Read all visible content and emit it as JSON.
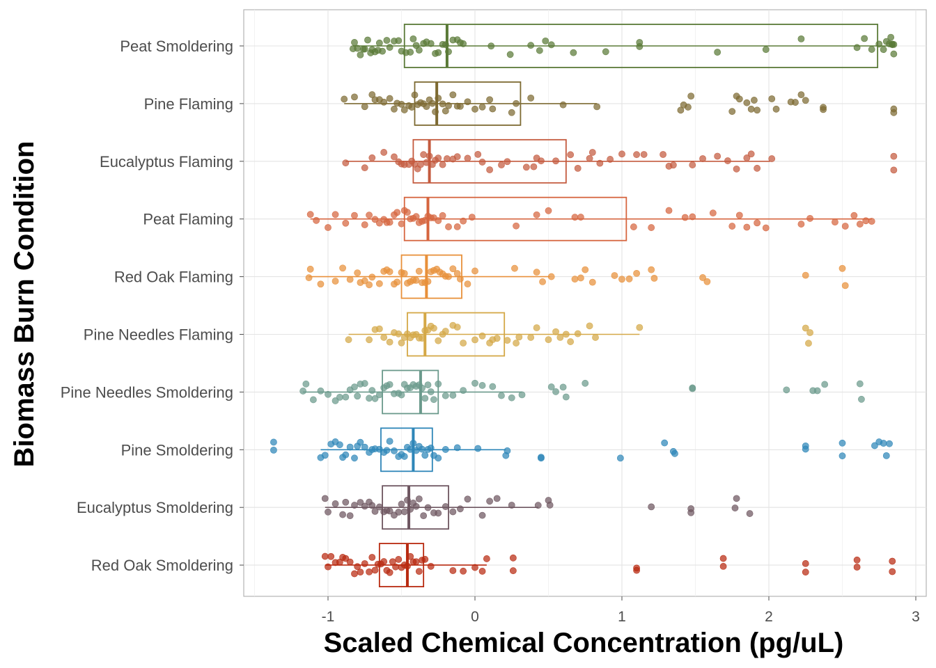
{
  "chart_data": {
    "type": "boxplot",
    "xlabel": "Scaled Chemical Concentration (pg/uL)",
    "ylabel": "Biomass Burn Condition",
    "xlim": [
      -1.5,
      3.05
    ],
    "x_ticks": [
      {
        "value": -1,
        "label": "-1"
      },
      {
        "value": 0,
        "label": "0"
      },
      {
        "value": 1,
        "label": "1"
      },
      {
        "value": 2,
        "label": "2"
      },
      {
        "value": 3,
        "label": "3"
      }
    ],
    "grid": true,
    "legend": "none",
    "categories": [
      {
        "name": "Peat Smoldering",
        "color": "#5a7a37",
        "q1": -0.48,
        "median": -0.19,
        "q3": 2.74,
        "whisker_low": -0.83,
        "whisker_high": 2.85,
        "points": [
          -0.83,
          -0.82,
          -0.8,
          -0.78,
          -0.76,
          -0.75,
          -0.73,
          -0.71,
          -0.7,
          -0.68,
          -0.66,
          -0.65,
          -0.63,
          -0.6,
          -0.58,
          -0.55,
          -0.52,
          -0.5,
          -0.47,
          -0.44,
          -0.42,
          -0.4,
          -0.38,
          -0.35,
          -0.33,
          -0.3,
          -0.27,
          -0.25,
          -0.22,
          -0.2,
          -0.18,
          -0.15,
          -0.12,
          -0.1,
          -0.08,
          0.11,
          0.24,
          0.38,
          0.44,
          0.48,
          0.52,
          0.67,
          0.89,
          1.12,
          1.12,
          1.65,
          1.98,
          2.22,
          2.6,
          2.65,
          2.7,
          2.75,
          2.78,
          2.8,
          2.82,
          2.84,
          2.85,
          2.85,
          2.84,
          2.83
        ]
      },
      {
        "name": "Pine Flaming",
        "color": "#7d6a32",
        "q1": -0.41,
        "median": -0.26,
        "q3": 0.31,
        "whisker_low": -0.89,
        "whisker_high": 0.83,
        "points": [
          -0.89,
          -0.82,
          -0.75,
          -0.7,
          -0.68,
          -0.65,
          -0.62,
          -0.58,
          -0.55,
          -0.53,
          -0.5,
          -0.48,
          -0.45,
          -0.43,
          -0.41,
          -0.39,
          -0.37,
          -0.35,
          -0.33,
          -0.31,
          -0.29,
          -0.27,
          -0.25,
          -0.22,
          -0.2,
          -0.18,
          -0.15,
          -0.12,
          -0.1,
          -0.05,
          0.0,
          0.05,
          0.1,
          0.12,
          0.25,
          0.28,
          0.38,
          0.6,
          0.83,
          1.4,
          1.42,
          1.45,
          1.47,
          1.75,
          1.78,
          1.8,
          1.85,
          1.88,
          1.9,
          1.92,
          2.02,
          2.05,
          2.15,
          2.18,
          2.22,
          2.25,
          2.37,
          2.37,
          2.85,
          2.85
        ]
      },
      {
        "name": "Eucalyptus Flaming",
        "color": "#c45a3e",
        "q1": -0.42,
        "median": -0.31,
        "q3": 0.62,
        "whisker_low": -0.88,
        "whisker_high": 2.01,
        "points": [
          -0.88,
          -0.75,
          -0.7,
          -0.62,
          -0.55,
          -0.52,
          -0.5,
          -0.48,
          -0.45,
          -0.43,
          -0.41,
          -0.39,
          -0.37,
          -0.35,
          -0.33,
          -0.31,
          -0.29,
          -0.27,
          -0.25,
          -0.22,
          -0.19,
          -0.15,
          -0.12,
          -0.05,
          0.02,
          0.05,
          0.1,
          0.18,
          0.22,
          0.35,
          0.4,
          0.42,
          0.45,
          0.55,
          0.65,
          0.7,
          0.78,
          0.8,
          0.85,
          0.92,
          1.0,
          1.1,
          1.15,
          1.28,
          1.32,
          1.35,
          1.48,
          1.55,
          1.65,
          1.72,
          1.78,
          1.85,
          1.88,
          1.92,
          2.02,
          2.85,
          2.85
        ]
      },
      {
        "name": "Peat Flaming",
        "color": "#d6653f",
        "q1": -0.48,
        "median": -0.32,
        "q3": 1.03,
        "whisker_low": -1.12,
        "whisker_high": 2.7,
        "points": [
          -1.12,
          -1.08,
          -1.0,
          -0.95,
          -0.88,
          -0.82,
          -0.75,
          -0.72,
          -0.68,
          -0.65,
          -0.62,
          -0.6,
          -0.58,
          -0.55,
          -0.53,
          -0.5,
          -0.48,
          -0.46,
          -0.44,
          -0.42,
          -0.4,
          -0.38,
          -0.36,
          -0.34,
          -0.32,
          -0.3,
          -0.28,
          -0.25,
          -0.22,
          -0.18,
          -0.12,
          -0.08,
          -0.02,
          0.28,
          0.42,
          0.5,
          0.68,
          0.72,
          1.08,
          1.2,
          1.32,
          1.43,
          1.48,
          1.62,
          1.75,
          1.8,
          1.85,
          1.92,
          1.98,
          2.22,
          2.28,
          2.45,
          2.52,
          2.58,
          2.62,
          2.66,
          2.7
        ]
      },
      {
        "name": "Red Oak Flaming",
        "color": "#e8903a",
        "q1": -0.5,
        "median": -0.33,
        "q3": -0.09,
        "whisker_low": -1.13,
        "whisker_high": 0.51,
        "points": [
          -1.13,
          -1.12,
          -1.05,
          -0.95,
          -0.9,
          -0.85,
          -0.8,
          -0.78,
          -0.75,
          -0.72,
          -0.7,
          -0.65,
          -0.62,
          -0.6,
          -0.58,
          -0.55,
          -0.53,
          -0.5,
          -0.48,
          -0.46,
          -0.44,
          -0.42,
          -0.4,
          -0.38,
          -0.36,
          -0.34,
          -0.32,
          -0.3,
          -0.28,
          -0.26,
          -0.24,
          -0.22,
          -0.2,
          -0.18,
          -0.15,
          -0.12,
          -0.1,
          -0.05,
          0.0,
          0.27,
          0.42,
          0.46,
          0.52,
          0.68,
          0.72,
          0.75,
          0.8,
          0.95,
          1.0,
          1.05,
          1.1,
          1.2,
          1.22,
          1.55,
          1.58,
          2.25,
          2.5,
          2.52
        ]
      },
      {
        "name": "Pine Needles Flaming",
        "color": "#d4a847",
        "q1": -0.46,
        "median": -0.34,
        "q3": 0.2,
        "whisker_low": -0.86,
        "whisker_high": 1.12,
        "points": [
          -0.86,
          -0.72,
          -0.68,
          -0.65,
          -0.62,
          -0.58,
          -0.55,
          -0.52,
          -0.5,
          -0.48,
          -0.46,
          -0.44,
          -0.42,
          -0.4,
          -0.38,
          -0.36,
          -0.34,
          -0.32,
          -0.3,
          -0.28,
          -0.25,
          -0.22,
          -0.2,
          -0.15,
          -0.12,
          -0.08,
          0.0,
          0.05,
          0.1,
          0.12,
          0.15,
          0.22,
          0.28,
          0.3,
          0.38,
          0.42,
          0.5,
          0.55,
          0.58,
          0.62,
          0.65,
          0.7,
          0.78,
          0.82,
          1.12,
          2.25,
          2.27,
          2.28
        ]
      },
      {
        "name": "Pine Needles Smoldering",
        "color": "#6b9a8c",
        "q1": -0.63,
        "median": -0.37,
        "q3": -0.25,
        "whisker_low": -1.17,
        "whisker_high": 0.32,
        "points": [
          -1.17,
          -1.15,
          -1.1,
          -1.05,
          -1.0,
          -0.95,
          -0.92,
          -0.88,
          -0.85,
          -0.82,
          -0.8,
          -0.78,
          -0.75,
          -0.72,
          -0.7,
          -0.68,
          -0.65,
          -0.62,
          -0.6,
          -0.58,
          -0.55,
          -0.52,
          -0.5,
          -0.48,
          -0.46,
          -0.44,
          -0.42,
          -0.4,
          -0.38,
          -0.36,
          -0.34,
          -0.32,
          -0.3,
          -0.28,
          -0.25,
          -0.2,
          -0.15,
          -0.08,
          0.0,
          0.05,
          0.12,
          0.18,
          0.25,
          0.32,
          0.52,
          0.55,
          0.6,
          0.62,
          0.75,
          1.48,
          1.48,
          2.12,
          2.3,
          2.33,
          2.38,
          2.62,
          2.63
        ]
      },
      {
        "name": "Pine Smoldering",
        "color": "#2e86b8",
        "q1": -0.64,
        "median": -0.42,
        "q3": -0.29,
        "whisker_low": -1.05,
        "whisker_high": 0.21,
        "points": [
          -1.37,
          -1.37,
          -1.05,
          -1.02,
          -0.98,
          -0.95,
          -0.92,
          -0.9,
          -0.88,
          -0.85,
          -0.82,
          -0.8,
          -0.78,
          -0.75,
          -0.72,
          -0.7,
          -0.68,
          -0.65,
          -0.62,
          -0.6,
          -0.58,
          -0.55,
          -0.52,
          -0.5,
          -0.48,
          -0.46,
          -0.44,
          -0.42,
          -0.4,
          -0.38,
          -0.36,
          -0.34,
          -0.32,
          -0.3,
          -0.28,
          -0.25,
          -0.2,
          -0.12,
          0.02,
          0.21,
          0.22,
          0.45,
          0.45,
          0.99,
          1.29,
          1.35,
          1.36,
          2.25,
          2.25,
          2.5,
          2.5,
          2.72,
          2.75,
          2.78,
          2.8,
          2.82
        ]
      },
      {
        "name": "Eucalyptus Smoldering",
        "color": "#6e5660",
        "q1": -0.63,
        "median": -0.45,
        "q3": -0.18,
        "whisker_low": -1.02,
        "whisker_high": 0.43,
        "points": [
          -1.02,
          -1.0,
          -0.95,
          -0.9,
          -0.88,
          -0.85,
          -0.82,
          -0.78,
          -0.75,
          -0.72,
          -0.7,
          -0.68,
          -0.65,
          -0.62,
          -0.6,
          -0.58,
          -0.55,
          -0.52,
          -0.5,
          -0.48,
          -0.46,
          -0.44,
          -0.42,
          -0.4,
          -0.38,
          -0.35,
          -0.32,
          -0.28,
          -0.25,
          -0.2,
          -0.15,
          -0.1,
          -0.05,
          0.05,
          0.1,
          0.15,
          0.25,
          0.43,
          0.5,
          0.51,
          1.2,
          1.47,
          1.47,
          1.77,
          1.78,
          1.87
        ]
      },
      {
        "name": "Red Oak Smoldering",
        "color": "#b82a10",
        "q1": -0.65,
        "median": -0.46,
        "q3": -0.35,
        "whisker_low": -1.02,
        "whisker_high": 0.08,
        "points": [
          -1.02,
          -1.0,
          -0.98,
          -0.95,
          -0.92,
          -0.9,
          -0.88,
          -0.85,
          -0.82,
          -0.8,
          -0.78,
          -0.75,
          -0.72,
          -0.7,
          -0.68,
          -0.66,
          -0.64,
          -0.62,
          -0.6,
          -0.58,
          -0.56,
          -0.54,
          -0.52,
          -0.5,
          -0.48,
          -0.46,
          -0.44,
          -0.42,
          -0.4,
          -0.38,
          -0.36,
          -0.34,
          -0.3,
          -0.15,
          -0.08,
          0.0,
          0.05,
          0.08,
          0.26,
          0.26,
          1.1,
          1.1,
          1.69,
          1.69,
          2.25,
          2.25,
          2.6,
          2.6,
          2.84,
          2.84
        ]
      }
    ]
  }
}
